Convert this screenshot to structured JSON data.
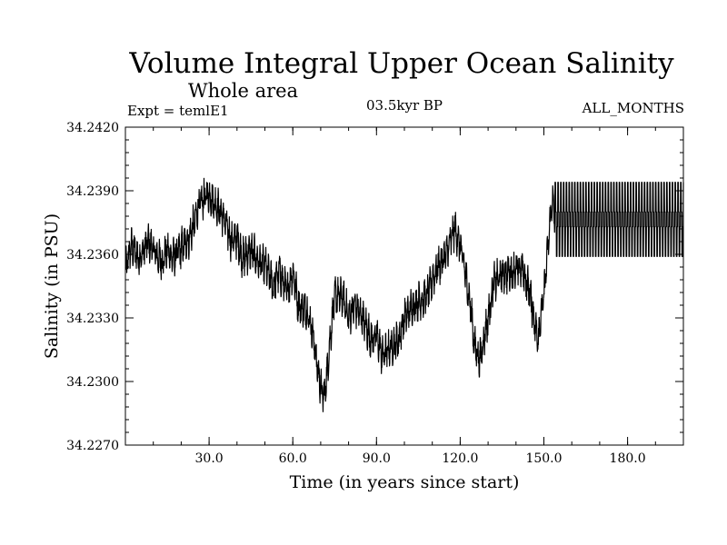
{
  "chart_data": {
    "type": "line",
    "title": "Volume Integral Upper Ocean Salinity",
    "subtitle": "Whole area",
    "experiment": "Expt = temlE1",
    "period": "03.5kyr BP",
    "months": "ALL_MONTHS",
    "xlabel": "Time (in years since start)",
    "ylabel": "Salinity (in PSU)",
    "xlim": [
      0,
      200
    ],
    "ylim": [
      34.227,
      34.242
    ],
    "xticks": [
      30,
      60,
      90,
      120,
      150,
      180
    ],
    "xtick_labels": [
      "30.0",
      "60.0",
      "90.0",
      "120.0",
      "150.0",
      "180.0"
    ],
    "yticks": [
      34.227,
      34.23,
      34.233,
      34.236,
      34.239,
      34.242
    ],
    "ytick_labels": [
      "34.2270",
      "34.2300",
      "34.2330",
      "34.2360",
      "34.2390",
      "34.2420"
    ],
    "series": [
      {
        "name": "salinity",
        "annual_mean": {
          "x": [
            0,
            2,
            5,
            8,
            10,
            13,
            15,
            17,
            20,
            23,
            25,
            26,
            28,
            30,
            32,
            35,
            38,
            40,
            42,
            45,
            48,
            50,
            53,
            55,
            58,
            60,
            62,
            65,
            67,
            69,
            70,
            71,
            72,
            73,
            75,
            78,
            80,
            82,
            85,
            88,
            90,
            92,
            95,
            98,
            100,
            103,
            105,
            108,
            110,
            112,
            115,
            117,
            118,
            120,
            122,
            124,
            125,
            127,
            130,
            132,
            135,
            138,
            140,
            142,
            145,
            147,
            148,
            150,
            152,
            153,
            154
          ],
          "y": [
            34.2352,
            34.2364,
            34.2358,
            34.2366,
            34.2362,
            34.2356,
            34.2362,
            34.2358,
            34.2363,
            34.2368,
            34.2376,
            34.2382,
            34.2386,
            34.2388,
            34.2384,
            34.2378,
            34.2366,
            34.2368,
            34.2358,
            34.2362,
            34.2356,
            34.2355,
            34.2345,
            34.2352,
            34.2342,
            34.2352,
            34.2336,
            34.2334,
            34.2324,
            34.2305,
            34.2298,
            34.2292,
            34.23,
            34.2315,
            34.234,
            34.234,
            34.233,
            34.2336,
            34.233,
            34.232,
            34.2322,
            34.2312,
            34.2316,
            34.232,
            34.233,
            34.2336,
            34.2338,
            34.234,
            34.2348,
            34.2354,
            34.236,
            34.2368,
            34.2372,
            34.2364,
            34.235,
            34.2332,
            34.2318,
            34.231,
            34.233,
            34.2346,
            34.235,
            34.2352,
            34.2352,
            34.2354,
            34.2342,
            34.2325,
            34.2322,
            34.234,
            34.2372,
            34.2386,
            34.2376
          ]
        },
        "annual_cycle_half_range": 0.0009,
        "steady_state_after_year": 154,
        "steady_state_range": [
          34.2359,
          34.2394
        ]
      }
    ]
  }
}
